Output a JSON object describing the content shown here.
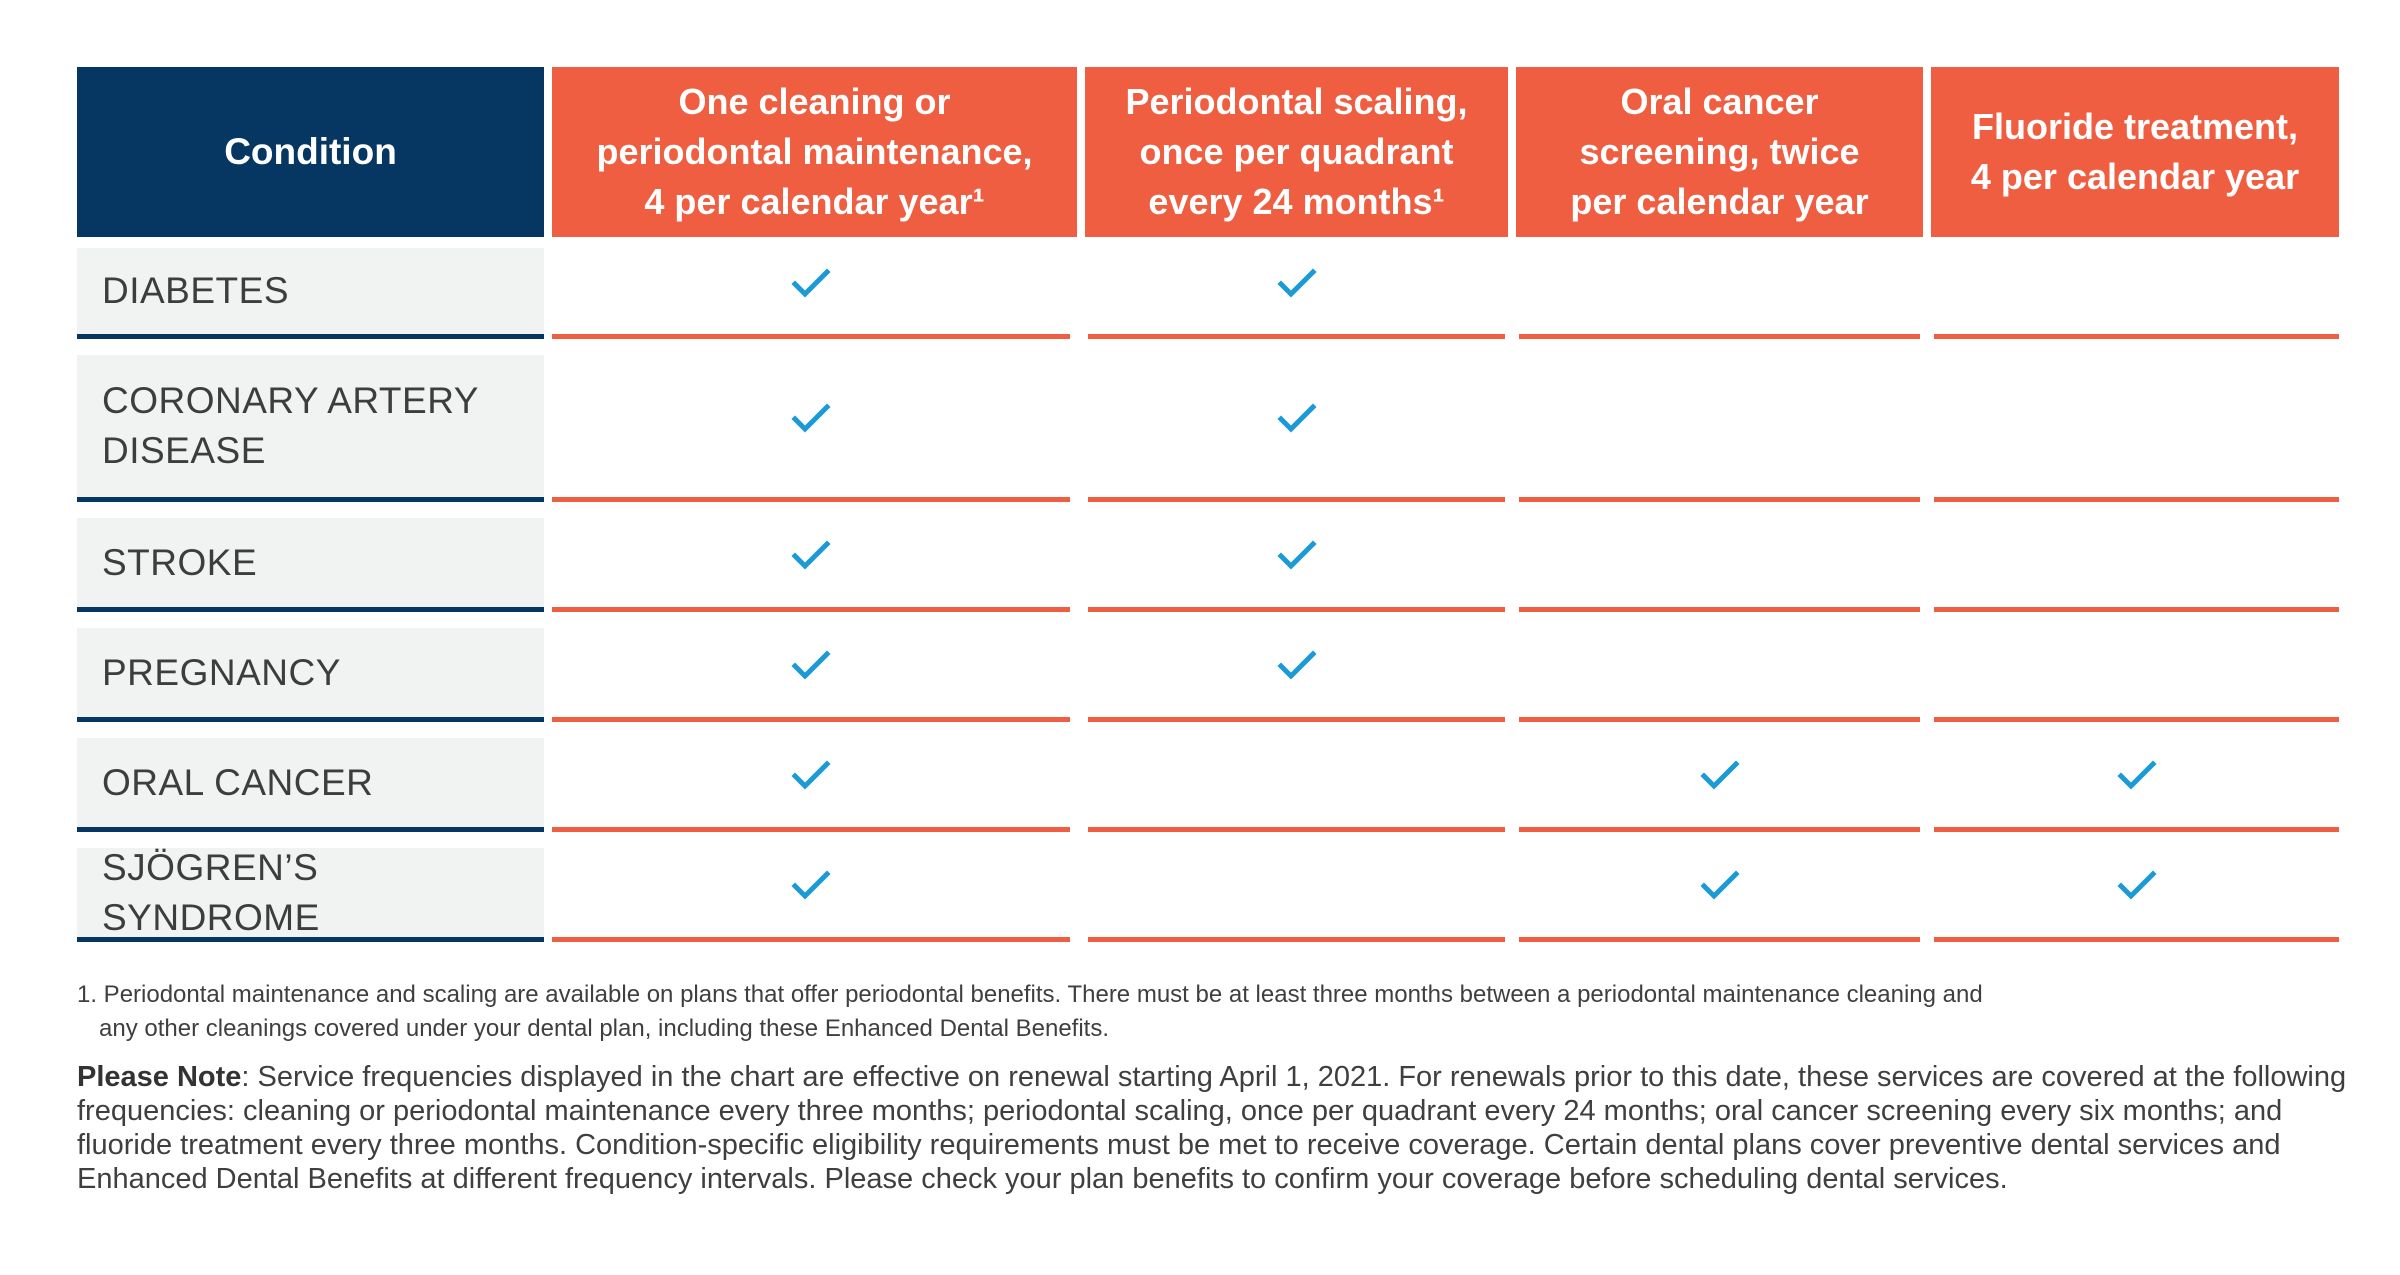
{
  "table": {
    "condition_header": "Condition",
    "service_headers": [
      [
        "One cleaning or",
        "periodontal maintenance,",
        "4 per calendar year¹"
      ],
      [
        "Periodontal scaling,",
        "once per quadrant",
        "every 24 months¹"
      ],
      [
        "Oral cancer",
        "screening, twice",
        "per calendar year"
      ],
      [
        "Fluoride treatment,",
        "4 per calendar year"
      ]
    ],
    "rows": [
      {
        "condition_lines": [
          "DIABETES"
        ],
        "covered": [
          true,
          true,
          false,
          false
        ]
      },
      {
        "condition_lines": [
          "CORONARY ARTERY",
          "DISEASE"
        ],
        "covered": [
          true,
          true,
          false,
          false
        ]
      },
      {
        "condition_lines": [
          "STROKE"
        ],
        "covered": [
          true,
          true,
          false,
          false
        ]
      },
      {
        "condition_lines": [
          "PREGNANCY"
        ],
        "covered": [
          true,
          true,
          false,
          false
        ]
      },
      {
        "condition_lines": [
          "ORAL CANCER"
        ],
        "covered": [
          true,
          false,
          true,
          true
        ]
      },
      {
        "condition_lines": [
          "SJÖGREN’S SYNDROME"
        ],
        "covered": [
          true,
          false,
          true,
          true
        ]
      }
    ]
  },
  "footnote": {
    "line1": "1. Periodontal maintenance and scaling are available on plans that offer periodontal benefits. There must be at least three months between a periodontal maintenance cleaning and",
    "line2": "any other cleanings covered under your dental plan, including these Enhanced Dental Benefits."
  },
  "please_note": {
    "label": "Please Note",
    "lines": [
      ": Service frequencies displayed in the chart are effective on renewal starting April 1, 2021. For renewals prior to this date, these services are covered at the following",
      "frequencies: cleaning or periodontal maintenance every three months; periodontal scaling, once per quadrant every 24 months; oral cancer screening every six months; and",
      "fluoride treatment every three months. Condition-specific eligibility requirements must be met to receive coverage. Certain dental plans cover preventive dental services and",
      "Enhanced Dental Benefits at different frequency intervals. Please check your plan benefits to confirm your coverage before scheduling dental services."
    ]
  },
  "colors": {
    "navy": "#063763",
    "orange": "#f05e41",
    "check": "#1a9ad6",
    "row_bg": "#f1f2f2"
  },
  "icons": {
    "covered": "check-icon"
  }
}
